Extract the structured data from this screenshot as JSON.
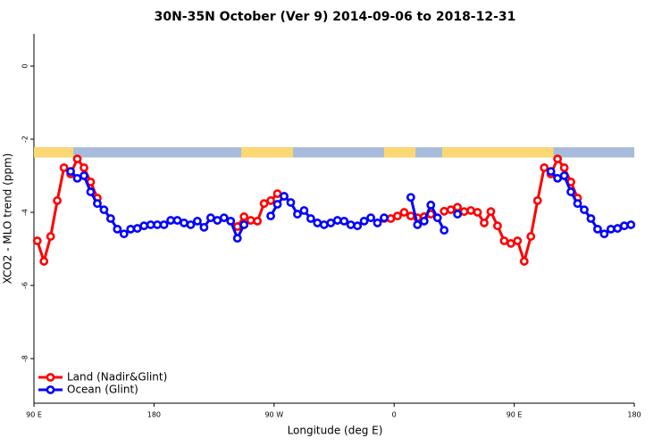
{
  "chart_data": {
    "type": "line",
    "title": "30N-35N October (Ver 9)   2014-09-06 to 2018-12-31",
    "x_label": "Longitude (deg E)",
    "y_label": "XCO2 - MLO trend (ppm)",
    "x": [
      92.5,
      97.5,
      102.5,
      107.5,
      112.5,
      117.5,
      122.5,
      127.5,
      132.5,
      137.5,
      142.5,
      147.5,
      152.5,
      157.5,
      162.5,
      167.5,
      172.5,
      177.5,
      182.5,
      187.5,
      192.5,
      197.5,
      202.5,
      207.5,
      212.5,
      217.5,
      222.5,
      227.5,
      232.5,
      237.5,
      242.5,
      247.5,
      252.5,
      257.5,
      262.5,
      267.5,
      272.5,
      277.5,
      282.5,
      287.5,
      292.5,
      297.5,
      302.5,
      307.5,
      312.5,
      317.5,
      322.5,
      327.5,
      332.5,
      337.5,
      342.5,
      347.5,
      352.5,
      357.5,
      362.5,
      367.5,
      372.5,
      377.5,
      382.5,
      387.5,
      392.5,
      397.5,
      402.5,
      407.5,
      412.5,
      417.5,
      422.5,
      427.5,
      432.5,
      437.5,
      442.5,
      447.5,
      452.5,
      457.5,
      462.5,
      467.5,
      472.5,
      477.5,
      482.5,
      487.5,
      492.5,
      497.5,
      502.5,
      507.5,
      512.5,
      517.5,
      522.5,
      527.5,
      532.5,
      537.5
    ],
    "series": [
      {
        "name": "Land (Nadir&Glint)",
        "color": "#ff0000",
        "values": [
          -4.78,
          -5.34,
          -4.66,
          -3.68,
          -2.78,
          -2.95,
          -2.54,
          -2.78,
          -3.17,
          -3.61,
          null,
          null,
          null,
          null,
          null,
          null,
          null,
          null,
          null,
          null,
          null,
          null,
          null,
          null,
          null,
          null,
          null,
          null,
          null,
          null,
          -4.39,
          -4.12,
          -4.22,
          -4.24,
          -3.76,
          -3.68,
          -3.49,
          -3.56,
          null,
          null,
          null,
          null,
          null,
          null,
          null,
          null,
          null,
          null,
          null,
          null,
          null,
          null,
          -4.17,
          -4.17,
          -4.1,
          -4.0,
          -4.1,
          -4.15,
          -4.12,
          -4.05,
          null,
          -3.97,
          -3.93,
          -3.86,
          -3.98,
          -3.95,
          -4.0,
          -4.29,
          -3.98,
          -4.37,
          -4.78,
          -4.85,
          -4.78,
          -5.34,
          -4.66,
          -3.68,
          -2.78,
          -2.95,
          -2.54,
          -2.78,
          -3.17,
          -3.61,
          null,
          null,
          null,
          null,
          null,
          null,
          null,
          null
        ]
      },
      {
        "name": "Ocean (Glint)",
        "color": "#0000ff",
        "values": [
          null,
          null,
          null,
          null,
          null,
          -2.88,
          -3.07,
          -3.0,
          -3.44,
          -3.76,
          -3.93,
          -4.17,
          -4.46,
          -4.59,
          -4.46,
          -4.44,
          -4.37,
          -4.34,
          -4.34,
          -4.34,
          -4.22,
          -4.22,
          -4.29,
          -4.34,
          -4.24,
          -4.41,
          -4.15,
          -4.22,
          -4.15,
          -4.24,
          -4.71,
          -4.34,
          null,
          null,
          null,
          -4.1,
          -3.78,
          -3.56,
          -3.73,
          -4.05,
          -3.95,
          -4.17,
          -4.29,
          -4.34,
          -4.29,
          -4.22,
          -4.24,
          -4.34,
          -4.37,
          -4.24,
          -4.15,
          -4.29,
          -4.15,
          null,
          null,
          null,
          -3.59,
          -4.34,
          -4.24,
          -3.8,
          -4.15,
          -4.49,
          null,
          -4.05,
          null,
          null,
          null,
          null,
          null,
          null,
          null,
          null,
          null,
          null,
          null,
          null,
          null,
          -2.88,
          -3.07,
          -3.0,
          -3.44,
          -3.76,
          -3.93,
          -4.17,
          -4.46,
          -4.59,
          -4.46,
          -4.44,
          -4.37,
          -4.34
        ]
      }
    ],
    "xlim": [
      90,
      540
    ],
    "ylim": [
      -9.22,
      0.88
    ],
    "xticks": [
      {
        "value": 90,
        "label": "90 E"
      },
      180,
      {
        "value": 270,
        "label": "90 W"
      },
      {
        "value": 360,
        "label": "0"
      },
      {
        "value": 450,
        "label": "90 E"
      },
      {
        "value": 540,
        "label": "180"
      }
    ],
    "yticks": [
      0,
      -2,
      -4,
      -6,
      -8
    ],
    "land_mask": {
      "ylim": [
        -2.5,
        -2.22
      ],
      "ocean_color": "#a7bcdc",
      "land_color": "#fbd873",
      "land": [
        [
          90,
          119.5
        ],
        [
          245.4,
          284.2
        ],
        [
          352.5,
          376
        ],
        [
          396,
          479.5
        ]
      ]
    },
    "legend": "bottom-left"
  }
}
